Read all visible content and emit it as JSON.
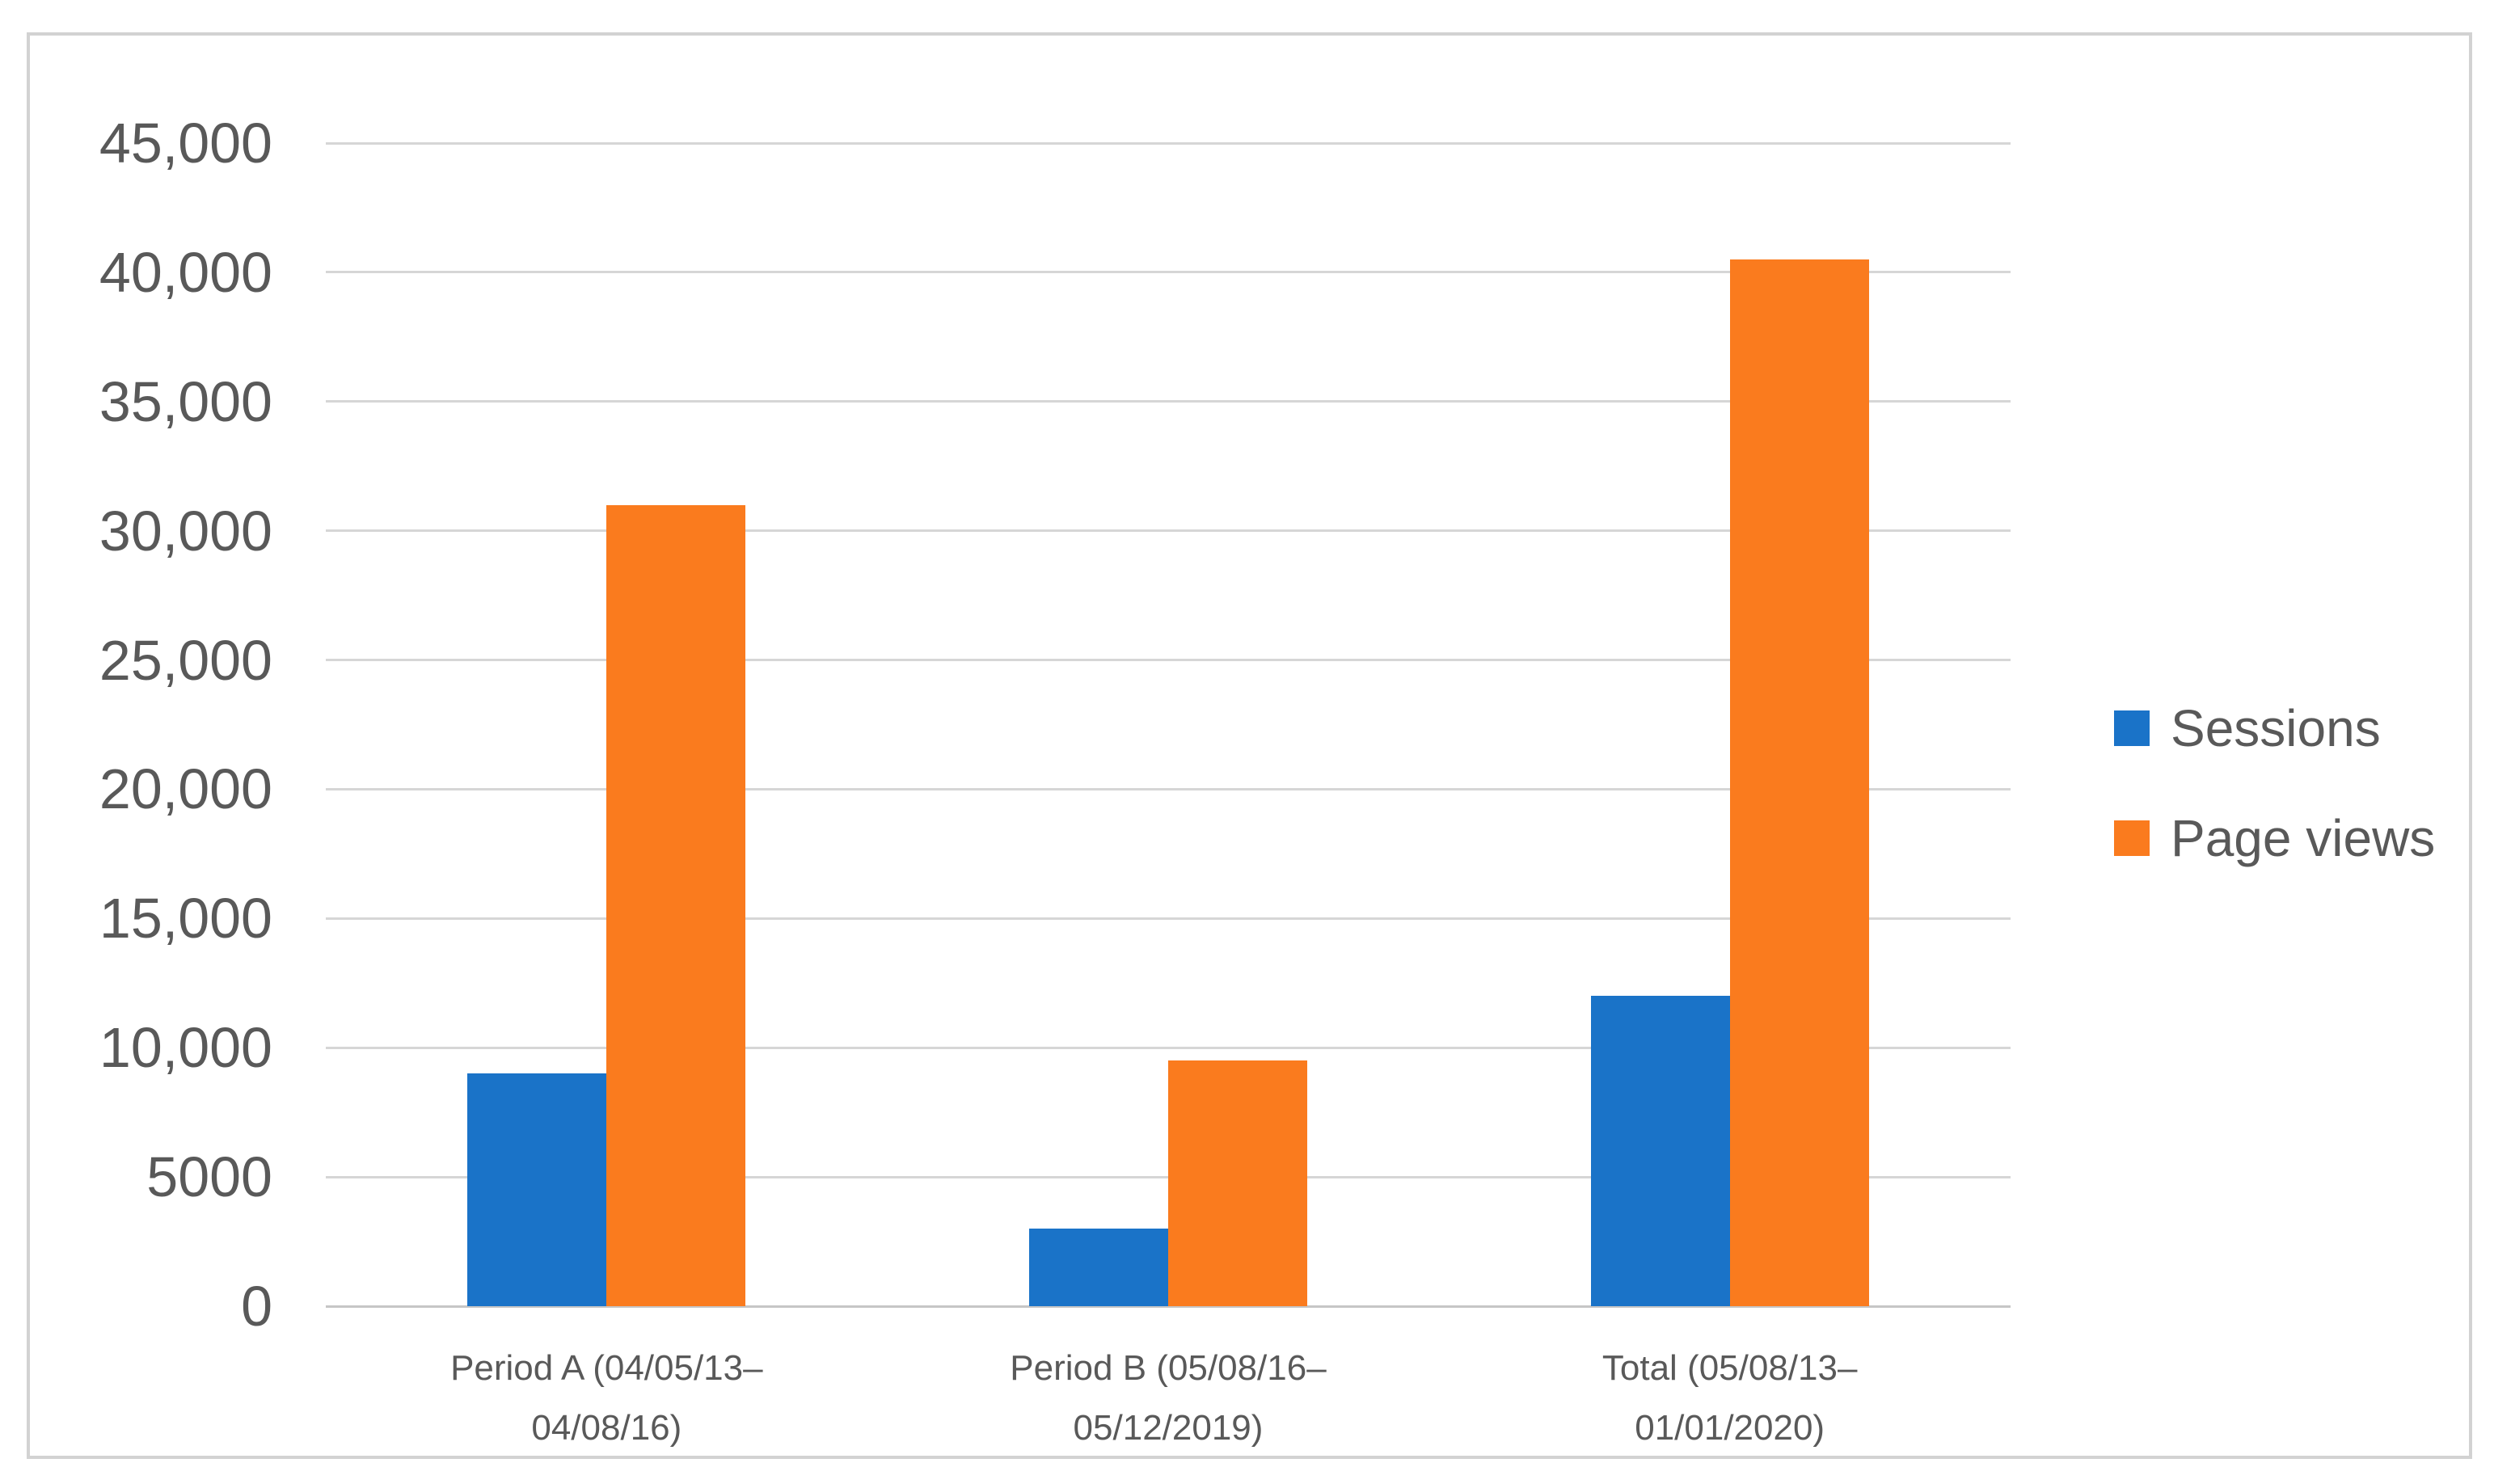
{
  "window": {
    "background": "#ffffff",
    "frame_border_color": "#d2d2d2"
  },
  "chart_data": {
    "type": "bar",
    "title": "",
    "xlabel": "",
    "ylabel": "",
    "categories": [
      {
        "label": "Period A (04/05/13–04/08/16)",
        "lines": [
          "Period A (04/05/13–",
          "04/08/16)"
        ]
      },
      {
        "label": "Period B (05/08/16–05/12/2019)",
        "lines": [
          "Period B (05/08/16–",
          "05/12/2019)"
        ]
      },
      {
        "label": "Total (05/08/13–01/01/2020)",
        "lines": [
          "Total (05/08/13–",
          "01/01/2020)"
        ]
      }
    ],
    "series": [
      {
        "name": "Sessions",
        "color": "#1A73C8",
        "values": [
          9000,
          3000,
          12000
        ]
      },
      {
        "name": "Page views",
        "color": "#FA7B1E",
        "values": [
          31000,
          9500,
          40500
        ]
      }
    ],
    "ylim": [
      0,
      45000
    ],
    "yticks": [
      {
        "value": 0,
        "label": "0"
      },
      {
        "value": 5000,
        "label": "5000"
      },
      {
        "value": 10000,
        "label": "10,000"
      },
      {
        "value": 15000,
        "label": "15,000"
      },
      {
        "value": 20000,
        "label": "20,000"
      },
      {
        "value": 25000,
        "label": "25,000"
      },
      {
        "value": 30000,
        "label": "30,000"
      },
      {
        "value": 35000,
        "label": "35,000"
      },
      {
        "value": 40000,
        "label": "40,000"
      },
      {
        "value": 45000,
        "label": "45,000"
      }
    ],
    "grid": true,
    "gridline_color": "#D6D6D6",
    "axis_line_color": "#C6C6C6",
    "text_color": "#595959",
    "legend_position": "right"
  }
}
